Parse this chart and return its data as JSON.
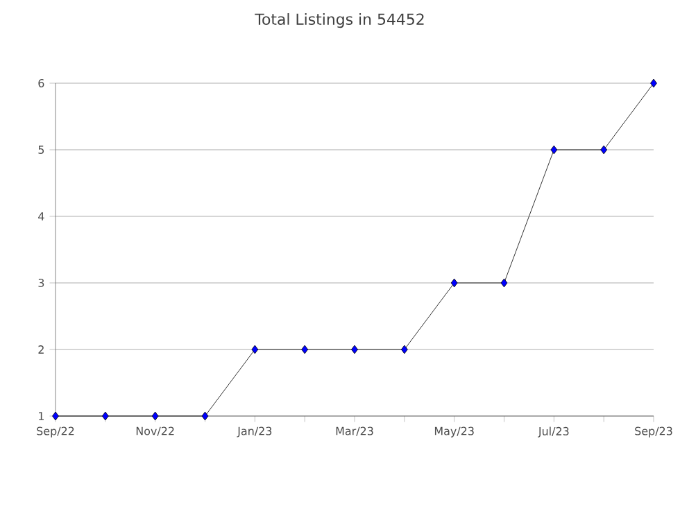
{
  "chart_data": {
    "type": "line",
    "title": "Total Listings in 54452",
    "categories": [
      "Sep/22",
      null,
      "Nov/22",
      null,
      "Jan/23",
      null,
      "Mar/23",
      null,
      "May/23",
      null,
      "Jul/23",
      null,
      "Sep/23"
    ],
    "series": [
      {
        "color": "#0000ff",
        "values": [
          1,
          1,
          1,
          1,
          2,
          2,
          2,
          2,
          3,
          3,
          5,
          5,
          6
        ]
      }
    ],
    "ylim": [
      1,
      6
    ],
    "yticks": [
      1,
      2,
      3,
      4,
      5,
      6
    ],
    "grid": "y",
    "marker": "diamond",
    "line_style": "solid"
  }
}
